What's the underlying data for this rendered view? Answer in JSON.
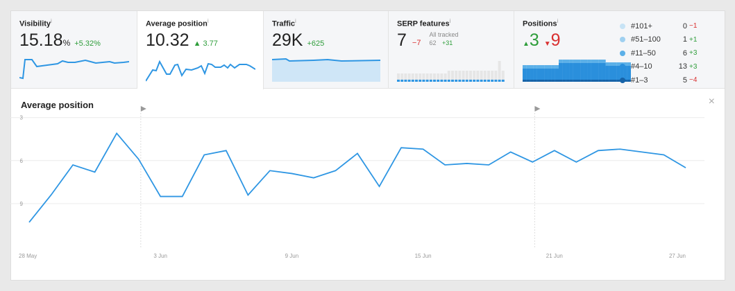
{
  "cards": {
    "visibility": {
      "title": "Visibility",
      "info": "i",
      "value": "15.18",
      "unit": "%",
      "delta": "+5.32%"
    },
    "avg_position": {
      "title": "Average position",
      "info": "i",
      "value": "10.32",
      "delta": "▲ 3.77"
    },
    "traffic": {
      "title": "Traffic",
      "info": "i",
      "value": "29K",
      "delta": "+625"
    },
    "serp": {
      "title": "SERP features",
      "info": "i",
      "value": "7",
      "delta": "−7",
      "all_tracked_label": "All tracked",
      "all_tracked_value": "62",
      "all_tracked_delta": "+31"
    },
    "positions": {
      "title": "Positions",
      "info": "i",
      "up": "3",
      "down": "9",
      "up_arrow": "▲",
      "down_arrow": "▼",
      "legend": [
        {
          "label": "#101+",
          "value": "0",
          "delta": "−1",
          "color": "#c7e3f5",
          "dir": "down"
        },
        {
          "label": "#51–100",
          "value": "1",
          "delta": "+1",
          "color": "#9fd0f0",
          "dir": "up"
        },
        {
          "label": "#11–50",
          "value": "6",
          "delta": "+3",
          "color": "#5cb0e8",
          "dir": "up"
        },
        {
          "label": "#4–10",
          "value": "13",
          "delta": "+3",
          "color": "#2a8fdc",
          "dir": "up"
        },
        {
          "label": "#1–3",
          "value": "5",
          "delta": "−4",
          "color": "#1663a8",
          "dir": "down"
        }
      ]
    }
  },
  "main": {
    "title": "Average position",
    "close": "×"
  },
  "chart_data": {
    "type": "line",
    "title": "Average position",
    "ylim": [
      2,
      12
    ],
    "y_inverted": true,
    "yticks": [
      3,
      6,
      9
    ],
    "xticks": [
      {
        "label": "28 May",
        "index": 0
      },
      {
        "label": "3 Jun",
        "index": 6
      },
      {
        "label": "9 Jun",
        "index": 12
      },
      {
        "label": "15 Jun",
        "index": 18
      },
      {
        "label": "21 Jun",
        "index": 24
      },
      {
        "label": "27 Jun",
        "index": 30
      }
    ],
    "annotations": [
      5.1,
      23.1
    ],
    "series": [
      {
        "name": "Average position",
        "color": "#2e96e3",
        "values": [
          10.3,
          8.4,
          6.3,
          6.8,
          4.1,
          5.9,
          8.5,
          8.5,
          5.6,
          5.3,
          8.4,
          6.7,
          6.9,
          7.2,
          6.7,
          5.5,
          7.8,
          5.1,
          5.2,
          6.3,
          6.2,
          6.3,
          5.4,
          6.1,
          5.3,
          6.1,
          5.3,
          5.2,
          5.4,
          5.6,
          6.5
        ]
      }
    ]
  }
}
